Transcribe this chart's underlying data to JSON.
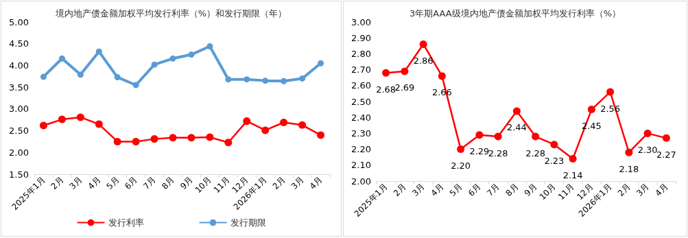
{
  "chart_data": [
    {
      "type": "line",
      "title": "境内地产债金额加权平均发行利率（%）和发行期限（年）",
      "categories": [
        "2025年1月",
        "2月",
        "3月",
        "4月",
        "5月",
        "6月",
        "7月",
        "8月",
        "9月",
        "10月",
        "11月",
        "12月",
        "2026年1月",
        "2月",
        "3月",
        "4月"
      ],
      "series": [
        {
          "name": "发行利率",
          "color": "#ff0000",
          "values": [
            2.62,
            2.76,
            2.81,
            2.65,
            2.25,
            2.25,
            2.31,
            2.34,
            2.34,
            2.35,
            2.23,
            2.72,
            2.51,
            2.69,
            2.63,
            2.4
          ]
        },
        {
          "name": "发行期限",
          "color": "#5b9bd5",
          "values": [
            3.74,
            4.16,
            3.79,
            4.32,
            3.73,
            3.55,
            4.02,
            4.16,
            4.25,
            4.44,
            3.68,
            3.68,
            3.65,
            3.64,
            3.7,
            4.05
          ]
        }
      ],
      "ylim": [
        1.5,
        5
      ],
      "yticks": [
        {
          "value": 1.5,
          "label": "1.50"
        },
        {
          "value": 2,
          "label": "2.00"
        },
        {
          "value": 2.5,
          "label": "2.50"
        },
        {
          "value": 3,
          "label": "3.00"
        },
        {
          "value": 3.5,
          "label": "3.50"
        },
        {
          "value": 4,
          "label": "4.00"
        },
        {
          "value": 4.5,
          "label": "4.50"
        },
        {
          "value": 5,
          "label": "5.00"
        }
      ],
      "grid": false,
      "legend": "bottom",
      "marker": "circle"
    },
    {
      "type": "line",
      "title": "3年期AAA级境内地产债金额加权平均发行利率（%）",
      "categories": [
        "2025年1月",
        "2月",
        "3月",
        "4月",
        "5月",
        "6月",
        "7月",
        "8月",
        "9月",
        "10月",
        "11月",
        "12月",
        "2026年1月",
        "2月",
        "3月",
        "4月"
      ],
      "series": [
        {
          "color": "#ff0000",
          "values": [
            2.68,
            2.69,
            2.86,
            2.66,
            2.2,
            2.29,
            2.28,
            2.44,
            2.28,
            2.23,
            2.14,
            2.45,
            2.56,
            2.18,
            2.3,
            2.27
          ],
          "value_labels": [
            "2.68",
            "2.69",
            "2.86",
            "2.66",
            "2.20",
            "2.29",
            "2.28",
            "2.44",
            "2.28",
            "2.23",
            "2.14",
            "2.45",
            "2.56",
            "2.18",
            "2.30",
            "2.27"
          ]
        }
      ],
      "ylim": [
        2,
        3
      ],
      "yticks": [
        {
          "value": 2,
          "label": "2.00"
        },
        {
          "value": 2.1,
          "label": "2.10"
        },
        {
          "value": 2.2,
          "label": "2.20"
        },
        {
          "value": 2.3,
          "label": "2.30"
        },
        {
          "value": 2.4,
          "label": "2.40"
        },
        {
          "value": 2.5,
          "label": "2.50"
        },
        {
          "value": 2.6,
          "label": "2.60"
        },
        {
          "value": 2.7,
          "label": "2.70"
        },
        {
          "value": 2.8,
          "label": "2.80"
        },
        {
          "value": 2.9,
          "label": "2.90"
        },
        {
          "value": 3,
          "label": "3.00"
        }
      ],
      "grid": false,
      "legend": false,
      "marker": "circle"
    }
  ]
}
